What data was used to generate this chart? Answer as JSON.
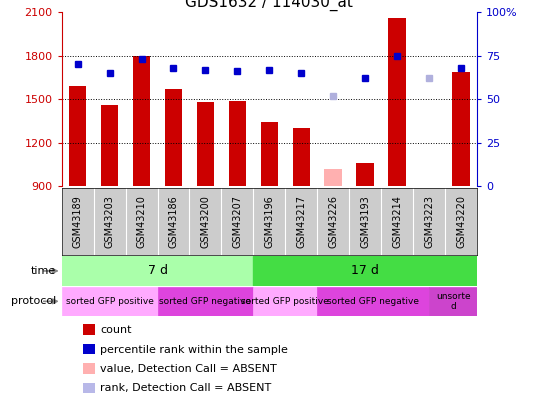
{
  "title": "GDS1632 / 114030_at",
  "samples": [
    "GSM43189",
    "GSM43203",
    "GSM43210",
    "GSM43186",
    "GSM43200",
    "GSM43207",
    "GSM43196",
    "GSM43217",
    "GSM43226",
    "GSM43193",
    "GSM43214",
    "GSM43223",
    "GSM43220"
  ],
  "bar_values": [
    1590,
    1460,
    1800,
    1570,
    1480,
    1490,
    1340,
    1300,
    1020,
    1060,
    2060,
    900,
    1690
  ],
  "bar_colors": [
    "#cc0000",
    "#cc0000",
    "#cc0000",
    "#cc0000",
    "#cc0000",
    "#cc0000",
    "#cc0000",
    "#cc0000",
    "#ffb0b0",
    "#cc0000",
    "#cc0000",
    "#ffb0b0",
    "#cc0000"
  ],
  "rank_values": [
    70,
    65,
    73,
    68,
    67,
    66,
    67,
    65,
    52,
    62,
    75,
    62,
    68
  ],
  "rank_colors": [
    "#0000cc",
    "#0000cc",
    "#0000cc",
    "#0000cc",
    "#0000cc",
    "#0000cc",
    "#0000cc",
    "#0000cc",
    "#b0b0dd",
    "#0000cc",
    "#0000cc",
    "#b0b0dd",
    "#0000cc"
  ],
  "ylim_left": [
    900,
    2100
  ],
  "ylim_right": [
    0,
    100
  ],
  "yticks_left": [
    900,
    1200,
    1500,
    1800,
    2100
  ],
  "yticks_right": [
    0,
    25,
    50,
    75,
    100
  ],
  "ytick_labels_right": [
    "0",
    "25",
    "50",
    "75",
    "100%"
  ],
  "bar_width": 0.55,
  "background_color": "#ffffff",
  "plot_bg_color": "#ffffff",
  "left_axis_color": "#cc0000",
  "right_axis_color": "#0000cc",
  "sample_box_color": "#cccccc",
  "time_7d_color": "#aaffaa",
  "time_17d_color": "#44dd44",
  "proto_pos_color": "#ffaaff",
  "proto_neg_color": "#dd44dd",
  "proto_unsorted_color": "#cc44cc",
  "legend_items": [
    {
      "label": "count",
      "color": "#cc0000"
    },
    {
      "label": "percentile rank within the sample",
      "color": "#0000cc"
    },
    {
      "label": "value, Detection Call = ABSENT",
      "color": "#ffb0b0"
    },
    {
      "label": "rank, Detection Call = ABSENT",
      "color": "#b8b8e8"
    }
  ]
}
